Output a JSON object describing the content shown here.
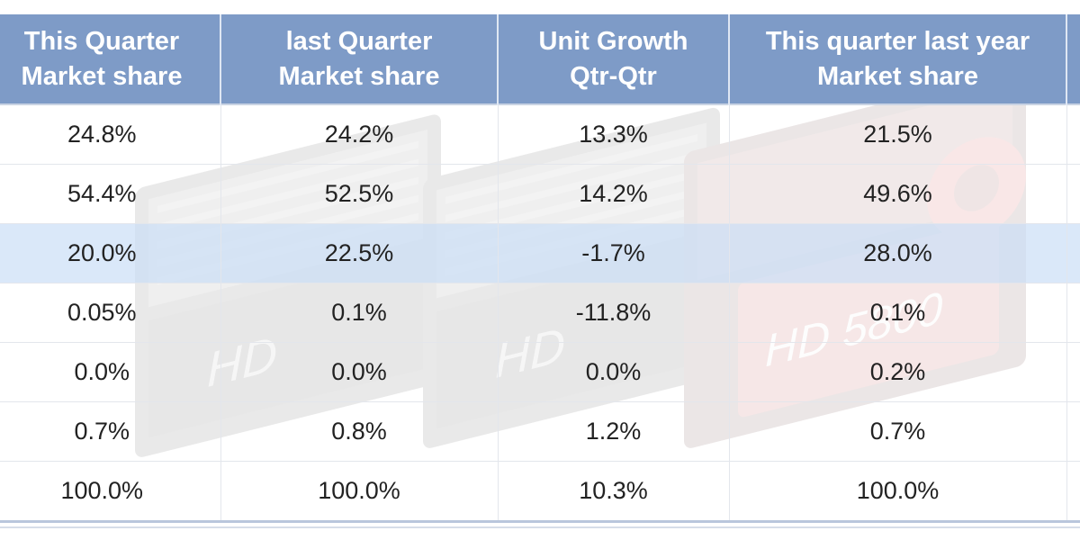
{
  "table": {
    "headers": [
      "This Quarter\nMarket share",
      "last Quarter\nMarket share",
      "Unit Growth\nQtr-Qtr",
      "This quarter last year\nMarket share",
      ""
    ],
    "rows": [
      [
        "24.8%",
        "24.2%",
        "13.3%",
        "21.5%",
        ""
      ],
      [
        "54.4%",
        "52.5%",
        "14.2%",
        "49.6%",
        ""
      ],
      [
        "20.0%",
        "22.5%",
        "-1.7%",
        "28.0%",
        ""
      ],
      [
        "0.05%",
        "0.1%",
        "-11.8%",
        "0.1%",
        ""
      ],
      [
        "0.0%",
        "0.0%",
        "0.0%",
        "0.2%",
        ""
      ],
      [
        "0.7%",
        "0.8%",
        "1.2%",
        "0.7%",
        ""
      ],
      [
        "100.0%",
        "100.0%",
        "10.3%",
        "100.0%",
        ""
      ]
    ],
    "highlighted_row": 2
  },
  "colors": {
    "header_bg": "#7e9bc7",
    "header_text": "#ffffff",
    "highlight_row": "#cfe2f7",
    "cell_text": "#222222"
  },
  "background": {
    "icon": "graphics-card-photo"
  }
}
